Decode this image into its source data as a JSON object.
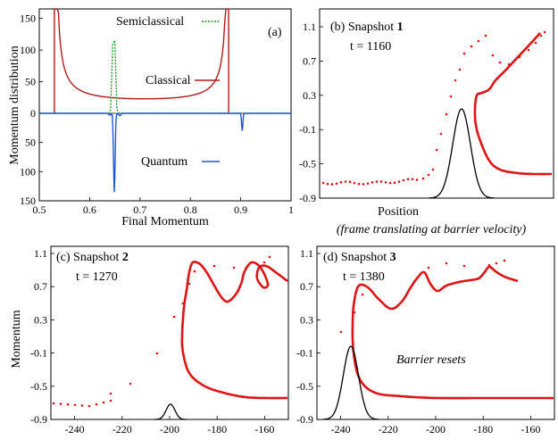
{
  "colors": {
    "classical": "#b01c1c",
    "quantum": "#1a5ad6",
    "semiclassical": "#2a9a2a",
    "snapshot_points": "#e01414",
    "barrier": "#000000"
  },
  "bottom_note": "(frame translating at barrier velocity)",
  "chart_data": [
    {
      "id": "a",
      "type": "line",
      "panel_label": "(a)",
      "xlabel": "Final Momentum",
      "ylabel": "Momentum distribution",
      "xlim": [
        0.5,
        1.0
      ],
      "ylim_top": [
        0,
        165
      ],
      "ylim_bottom": [
        0,
        150
      ],
      "x_ticks": [
        "0.5",
        "0.6",
        "0.7",
        "0.8",
        "0.9",
        "1"
      ],
      "y_ticks_top": [
        "0",
        "50",
        "100",
        "150"
      ],
      "y_ticks_bottom": [
        "50",
        "100",
        "150"
      ],
      "series": [
        {
          "name": "Classical",
          "key": "classical",
          "support": [
            0.53,
            0.876
          ],
          "min": {
            "x": 0.65,
            "y": 18
          }
        },
        {
          "name": "Semiclassical",
          "key": "semiclassical",
          "peak": {
            "x": 0.648,
            "y": 160
          }
        },
        {
          "name": "Quantum",
          "key": "quantum",
          "peaks": [
            {
              "x": 0.649,
              "y": 135
            },
            {
              "x": 0.903,
              "y": 30
            }
          ]
        }
      ]
    },
    {
      "id": "b",
      "type": "scatter",
      "title": "(b) Snapshot 1",
      "title_prefix": "(b) Snapshot ",
      "title_num": "1",
      "time": "t = 1160",
      "xlabel": "Position",
      "ylabel": "",
      "ylim": [
        -0.9,
        1.1
      ],
      "y_ticks": [
        "1.1",
        "0.7",
        "0.3",
        "-0.1",
        "-0.5",
        "-0.9"
      ]
    },
    {
      "id": "c",
      "type": "scatter",
      "title": "(c) Snapshot 2",
      "title_prefix": "(c) Snapshot ",
      "title_num": "2",
      "time": "t = 1270",
      "xlabel": "",
      "ylabel": "Momentum",
      "xlim": [
        -250,
        -150
      ],
      "ylim": [
        -0.9,
        1.1
      ],
      "x_ticks": [
        "-240",
        "-220",
        "-200",
        "-180",
        "-160"
      ],
      "y_ticks": [
        "1.1",
        "0.7",
        "0.3",
        "-0.1",
        "-0.5",
        "-0.9"
      ]
    },
    {
      "id": "d",
      "type": "scatter",
      "title": "(d) Snapshot 3",
      "title_prefix": "(d) Snapshot ",
      "title_num": "3",
      "time": "t = 1380",
      "xlabel": "",
      "ylabel": "",
      "annotation": "Barrier resets",
      "xlim": [
        -250,
        -150
      ],
      "ylim": [
        -0.9,
        1.1
      ],
      "x_ticks": [
        "-240",
        "-220",
        "-200",
        "-180",
        "-160"
      ],
      "y_ticks": [
        "1.1",
        "0.7",
        "0.3",
        "-0.1",
        "-0.5",
        "-0.9"
      ]
    }
  ]
}
